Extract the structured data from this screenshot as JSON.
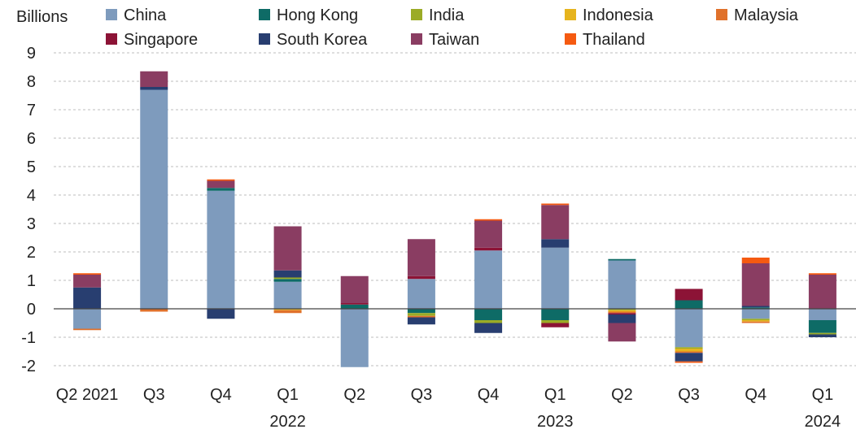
{
  "chart_data": {
    "type": "bar",
    "stacked": true,
    "unit_label": "Billions",
    "title": "",
    "xlabel": "",
    "ylabel": "",
    "ylim": [
      -2,
      9
    ],
    "yticks": [
      9,
      8,
      7,
      6,
      5,
      4,
      3,
      2,
      1,
      0,
      -1,
      -2
    ],
    "grid": true,
    "legend_position": "top",
    "categories": [
      "Q2 2021",
      "Q3",
      "Q4",
      "Q1 2022",
      "Q2",
      "Q3",
      "Q4",
      "Q1 2023",
      "Q2",
      "Q3",
      "Q4",
      "Q1 2024"
    ],
    "category_tick_lines": [
      [
        "Q2 2021"
      ],
      [
        "Q3"
      ],
      [
        "Q4"
      ],
      [
        "Q1",
        "2022"
      ],
      [
        "Q2"
      ],
      [
        "Q3"
      ],
      [
        "Q4"
      ],
      [
        "Q1",
        "2023"
      ],
      [
        "Q2"
      ],
      [
        "Q3"
      ],
      [
        "Q4"
      ],
      [
        "Q1",
        "2024"
      ]
    ],
    "series": [
      {
        "name": "China",
        "color": "#7e9bbd",
        "values": [
          -0.7,
          7.7,
          4.15,
          0.95,
          -2.05,
          1.05,
          2.05,
          2.15,
          1.7,
          -1.35,
          -0.35,
          -0.4
        ]
      },
      {
        "name": "Hong Kong",
        "color": "#0e6b66",
        "values": [
          0.0,
          0.0,
          0.1,
          0.1,
          0.15,
          -0.15,
          -0.4,
          -0.4,
          0.05,
          0.3,
          0.05,
          -0.45
        ]
      },
      {
        "name": "India",
        "color": "#9bab26",
        "values": [
          0.0,
          0.0,
          0.0,
          0.05,
          0.0,
          -0.1,
          -0.1,
          -0.1,
          -0.05,
          -0.05,
          -0.05,
          -0.05
        ]
      },
      {
        "name": "Indonesia",
        "color": "#e6b41e",
        "values": [
          0.0,
          0.0,
          0.0,
          -0.05,
          0.0,
          0.0,
          0.0,
          0.0,
          -0.05,
          -0.1,
          -0.05,
          0.0
        ]
      },
      {
        "name": "Malaysia",
        "color": "#e0712b",
        "values": [
          -0.05,
          -0.1,
          0.0,
          -0.1,
          0.0,
          -0.05,
          0.0,
          0.0,
          -0.05,
          -0.05,
          -0.05,
          0.0
        ]
      },
      {
        "name": "Singapore",
        "color": "#8c1336",
        "values": [
          0.0,
          0.0,
          0.0,
          0.0,
          0.05,
          0.1,
          0.1,
          -0.15,
          -0.05,
          0.4,
          0.0,
          0.0
        ]
      },
      {
        "name": "South Korea",
        "color": "#283e70",
        "values": [
          0.75,
          0.1,
          -0.35,
          0.25,
          0.0,
          -0.25,
          -0.35,
          0.3,
          -0.3,
          -0.3,
          0.05,
          -0.1
        ]
      },
      {
        "name": "Taiwan",
        "color": "#8a3d62",
        "values": [
          0.45,
          0.55,
          0.25,
          1.55,
          0.95,
          1.3,
          0.95,
          1.2,
          -0.65,
          0.0,
          1.5,
          1.2
        ]
      },
      {
        "name": "Thailand",
        "color": "#f55a11",
        "values": [
          0.05,
          0.0,
          0.05,
          0.0,
          0.0,
          0.0,
          0.05,
          0.05,
          0.0,
          -0.05,
          0.2,
          0.05
        ]
      }
    ]
  }
}
